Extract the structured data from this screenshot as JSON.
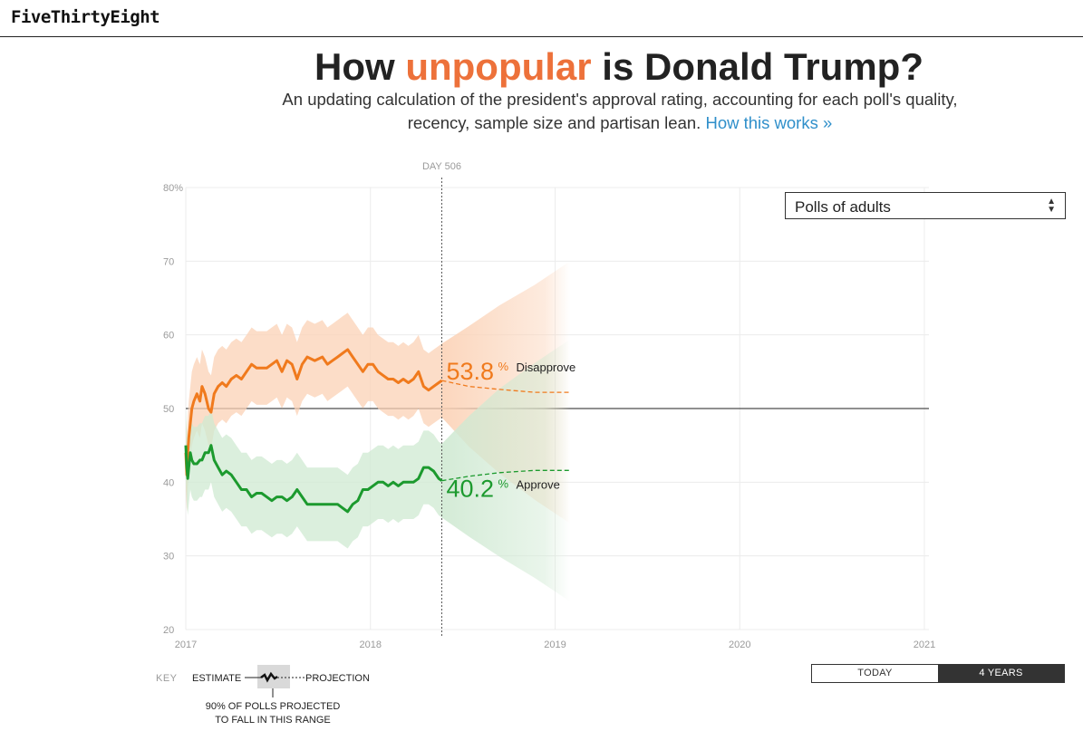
{
  "site": {
    "logo": "FiveThirtyEight"
  },
  "header": {
    "title_pre": "How ",
    "title_highlight": "unpopular",
    "title_post": " is Donald Trump?",
    "subtitle_line1": "An updating calculation of the president's approval rating, accounting for each poll's quality,",
    "subtitle_line2": "recency, sample size and partisan lean.",
    "link_text": "How this works »"
  },
  "controls": {
    "poll_filter": "Polls of adults",
    "range_options": [
      "TODAY",
      "4 YEARS"
    ],
    "range_selected": "4 YEARS"
  },
  "key": {
    "label": "KEY",
    "estimate": "ESTIMATE",
    "projection": "PROJECTION",
    "range_line1": "90% OF POLLS PROJECTED",
    "range_line2": "TO FALL IN THIS RANGE"
  },
  "colors": {
    "disapprove": "#f07a1d",
    "approve": "#1c9a2e",
    "disapprove_band": "#fbd2b6",
    "approve_band": "#cfe9d2",
    "grid": "#ececec",
    "axis": "#222222"
  },
  "chart_data": {
    "type": "line",
    "title": "How unpopular is Donald Trump?",
    "x_unit": "days since 2017-01-20",
    "y_unit": "percent",
    "y_range": [
      20,
      80
    ],
    "y_ticks": [
      20,
      30,
      40,
      50,
      60,
      70,
      80
    ],
    "y_top_label": "80%",
    "x_range_years": [
      2017,
      2021
    ],
    "x_tick_labels": [
      "2017",
      "2018",
      "2019",
      "2020",
      "2021"
    ],
    "current_day_label": "DAY 506",
    "current_day": 506,
    "reference_line": 50,
    "series": [
      {
        "name": "Disapprove",
        "current_value": "53.8",
        "points": [
          [
            0,
            44
          ],
          [
            2,
            41
          ],
          [
            4,
            44
          ],
          [
            6,
            46
          ],
          [
            9,
            48
          ],
          [
            12,
            50
          ],
          [
            16,
            51
          ],
          [
            22,
            52
          ],
          [
            28,
            51
          ],
          [
            32,
            53
          ],
          [
            38,
            52
          ],
          [
            45,
            50
          ],
          [
            50,
            49.5
          ],
          [
            56,
            52
          ],
          [
            64,
            53
          ],
          [
            72,
            53.5
          ],
          [
            80,
            53
          ],
          [
            90,
            54
          ],
          [
            100,
            54.5
          ],
          [
            110,
            54
          ],
          [
            120,
            55
          ],
          [
            130,
            56
          ],
          [
            140,
            55.5
          ],
          [
            150,
            55.5
          ],
          [
            160,
            55.5
          ],
          [
            170,
            56
          ],
          [
            180,
            56.5
          ],
          [
            190,
            55
          ],
          [
            200,
            56.5
          ],
          [
            210,
            56
          ],
          [
            220,
            54
          ],
          [
            230,
            56
          ],
          [
            240,
            57
          ],
          [
            255,
            56.5
          ],
          [
            270,
            57
          ],
          [
            280,
            56
          ],
          [
            290,
            56.5
          ],
          [
            300,
            57
          ],
          [
            310,
            57.5
          ],
          [
            320,
            58
          ],
          [
            330,
            57
          ],
          [
            340,
            56
          ],
          [
            350,
            55
          ],
          [
            360,
            56
          ],
          [
            370,
            56
          ],
          [
            380,
            55
          ],
          [
            390,
            54.5
          ],
          [
            400,
            54
          ],
          [
            410,
            54
          ],
          [
            420,
            53.5
          ],
          [
            430,
            54
          ],
          [
            440,
            53.5
          ],
          [
            450,
            54
          ],
          [
            460,
            55
          ],
          [
            470,
            53
          ],
          [
            480,
            52.5
          ],
          [
            490,
            53
          ],
          [
            500,
            53.5
          ],
          [
            506,
            53.8
          ]
        ],
        "band_halfwidth": 5,
        "projection": [
          [
            506,
            53.8
          ],
          [
            560,
            53
          ],
          [
            620,
            52.6
          ],
          [
            690,
            52.2
          ],
          [
            760,
            52.2
          ]
        ]
      },
      {
        "name": "Approve",
        "current_value": "40.2",
        "points": [
          [
            0,
            45
          ],
          [
            2,
            42
          ],
          [
            4,
            40.5
          ],
          [
            6,
            42
          ],
          [
            9,
            44
          ],
          [
            12,
            43
          ],
          [
            16,
            42.5
          ],
          [
            22,
            42.5
          ],
          [
            28,
            43
          ],
          [
            32,
            43
          ],
          [
            38,
            44
          ],
          [
            45,
            44
          ],
          [
            50,
            45
          ],
          [
            56,
            43
          ],
          [
            64,
            42
          ],
          [
            72,
            41
          ],
          [
            80,
            41.5
          ],
          [
            90,
            41
          ],
          [
            100,
            40
          ],
          [
            110,
            39
          ],
          [
            120,
            39
          ],
          [
            130,
            38
          ],
          [
            140,
            38.5
          ],
          [
            150,
            38.5
          ],
          [
            160,
            38
          ],
          [
            170,
            37.5
          ],
          [
            180,
            38
          ],
          [
            190,
            38
          ],
          [
            200,
            37.5
          ],
          [
            210,
            38
          ],
          [
            220,
            39
          ],
          [
            230,
            38
          ],
          [
            240,
            37
          ],
          [
            255,
            37
          ],
          [
            270,
            37
          ],
          [
            280,
            37
          ],
          [
            290,
            37
          ],
          [
            300,
            37
          ],
          [
            310,
            36.5
          ],
          [
            320,
            36
          ],
          [
            330,
            37
          ],
          [
            340,
            37.5
          ],
          [
            350,
            39
          ],
          [
            360,
            39
          ],
          [
            370,
            39.5
          ],
          [
            380,
            40
          ],
          [
            390,
            40
          ],
          [
            400,
            39.5
          ],
          [
            410,
            40
          ],
          [
            420,
            39.5
          ],
          [
            430,
            40
          ],
          [
            440,
            40
          ],
          [
            450,
            40
          ],
          [
            460,
            40.5
          ],
          [
            470,
            42
          ],
          [
            480,
            42
          ],
          [
            490,
            41.5
          ],
          [
            500,
            40.5
          ],
          [
            506,
            40.2
          ]
        ],
        "band_halfwidth": 5,
        "projection": [
          [
            506,
            40.2
          ],
          [
            560,
            40.8
          ],
          [
            620,
            41.3
          ],
          [
            690,
            41.6
          ],
          [
            760,
            41.6
          ]
        ]
      }
    ]
  }
}
